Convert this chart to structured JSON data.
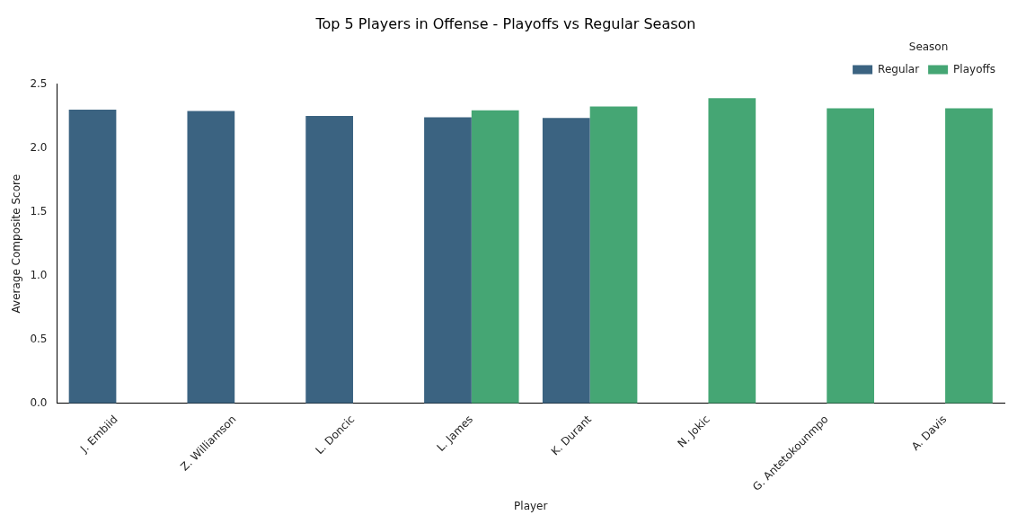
{
  "chart_data": {
    "type": "bar",
    "title": "Top 5 Players in Offense - Playoffs vs Regular Season",
    "xlabel": "Player",
    "ylabel": "Average Composite Score",
    "legend_title": "Season",
    "legend": "top right",
    "grid": false,
    "categories": [
      "J. Embiid",
      "Z. Williamson",
      "L. Doncic",
      "L. James",
      "K. Durant",
      "N. Jokic",
      "G. Antetokounmpo",
      "A. Davis"
    ],
    "series": [
      {
        "name": "Regular",
        "color": "#3b6381",
        "values": [
          2.3,
          2.29,
          2.25,
          2.24,
          2.235,
          null,
          null,
          null
        ]
      },
      {
        "name": "Playoffs",
        "color": "#45a674",
        "values": [
          null,
          null,
          null,
          2.295,
          2.325,
          2.39,
          2.31,
          2.31
        ]
      }
    ],
    "ylim": [
      0,
      2.5
    ],
    "yticks": [
      {
        "value": 0,
        "label": "0.0"
      },
      {
        "value": 0.5,
        "label": "0.5"
      },
      {
        "value": 1,
        "label": "1.0"
      },
      {
        "value": 1.5,
        "label": "1.5"
      },
      {
        "value": 2,
        "label": "2.0"
      },
      {
        "value": 2.5,
        "label": "2.5"
      }
    ]
  }
}
